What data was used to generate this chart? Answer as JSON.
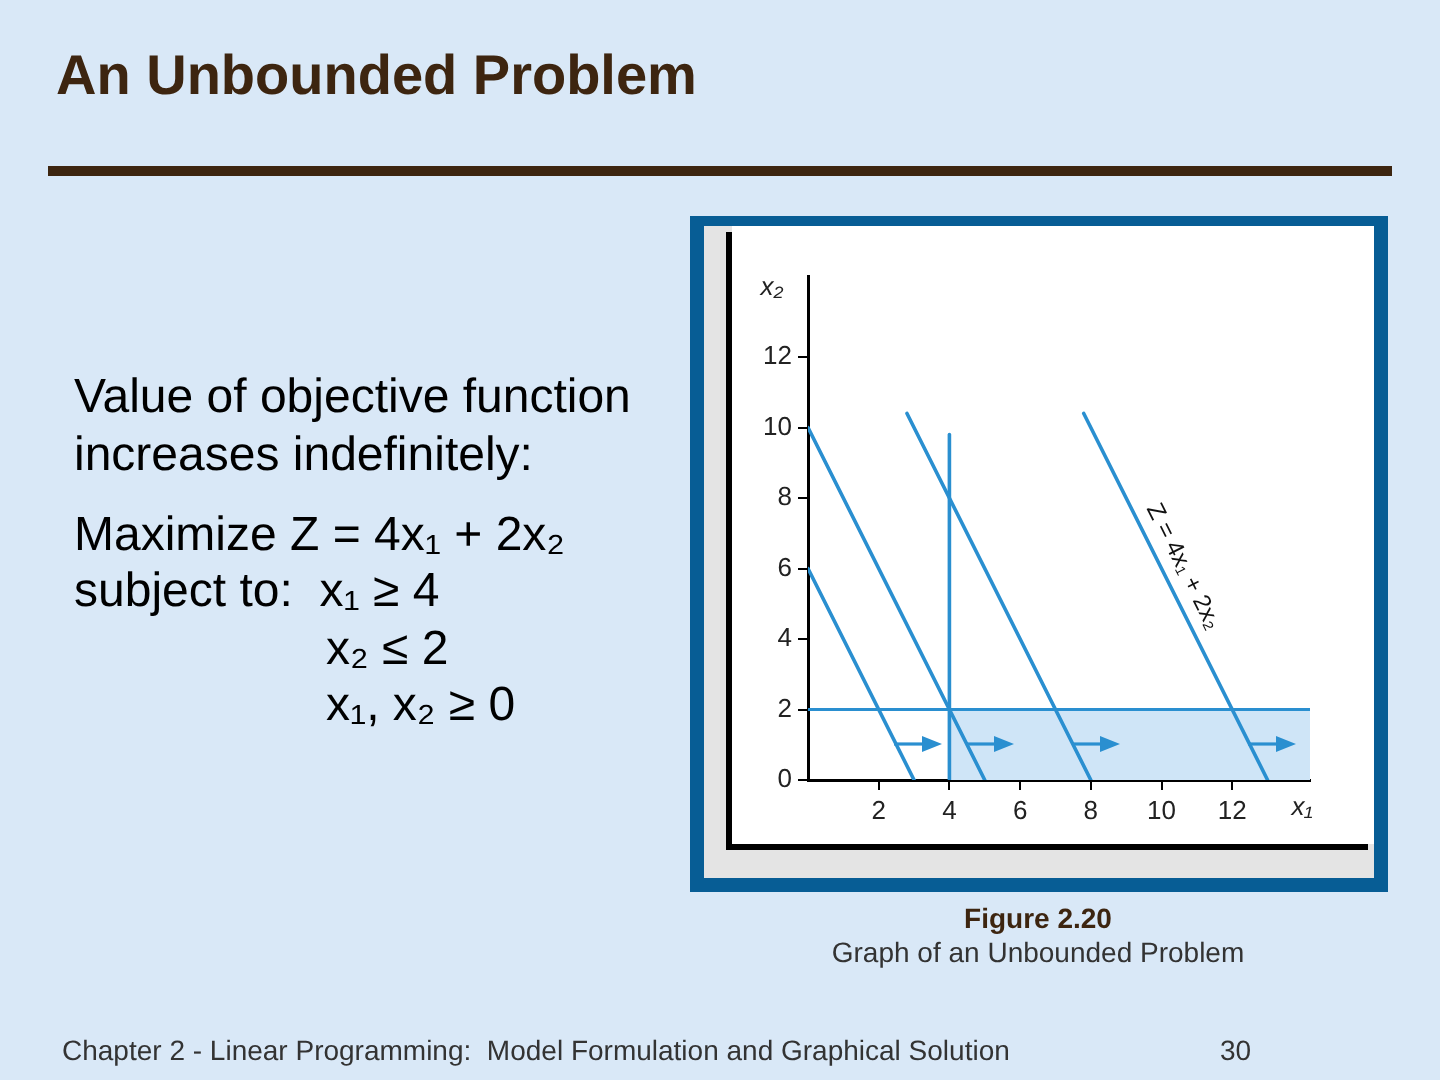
{
  "chart_data": {
    "type": "line",
    "title": "An Unbounded Problem",
    "xlabel": "x₁",
    "ylabel": "x₂",
    "annotations": [
      "Value of objective function increases indefinitely:",
      "Maximize Z = 4x₁ + 2x₂",
      "subject to:  x₁ ≥ 4",
      "x₂ ≤ 2",
      "x₁, x₂ ≥ 0",
      "Figure 2.20",
      "Graph of an Unbounded Problem",
      "Chapter 2 - Linear Programming:  Model Formulation and Graphical Solution",
      "30",
      {
        "text": "Z = 4x₁ + 2x₂",
        "x": 10.1,
        "y": 5.8
      }
    ],
    "xlim": [
      0,
      14.2
    ],
    "ylim": [
      0,
      14.3
    ],
    "xticks": [
      2,
      4,
      6,
      8,
      10,
      12
    ],
    "yticks": [
      0,
      2,
      4,
      6,
      8,
      10,
      12
    ],
    "grid": false,
    "marker": "none",
    "ref_lines": [
      {
        "axis": "y",
        "value": 2,
        "color": "#2a8fd0"
      }
    ],
    "series": [
      {
        "type": "area",
        "x": [
          4,
          14.2
        ],
        "values": [
          2,
          2
        ],
        "color": "#cfe5f7"
      },
      {
        "x": [
          0,
          3
        ],
        "values": [
          6,
          0
        ],
        "color": "#2a8fd0"
      },
      {
        "x": [
          0,
          5
        ],
        "values": [
          10,
          0
        ],
        "color": "#2a8fd0"
      },
      {
        "x": [
          2.8,
          8
        ],
        "values": [
          10.4,
          0
        ],
        "color": "#2a8fd0"
      },
      {
        "x": [
          7.8,
          13
        ],
        "values": [
          10.4,
          0
        ],
        "color": "#2a8fd0"
      },
      {
        "x": [
          4,
          4
        ],
        "values": [
          0,
          9.8
        ],
        "color": "#2a8fd0"
      }
    ]
  }
}
